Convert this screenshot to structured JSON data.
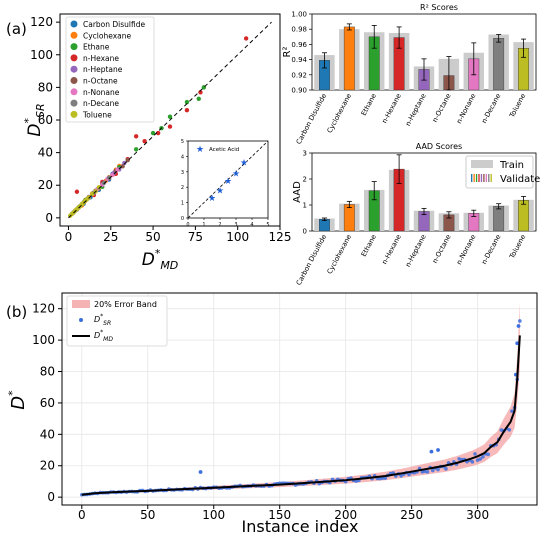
{
  "panel_labels": {
    "a": "(a)",
    "b": "(b)"
  },
  "species": [
    {
      "name": "Carbon Disulfide",
      "color": "#1f77b4"
    },
    {
      "name": "Cyclohexane",
      "color": "#ff7f0e"
    },
    {
      "name": "Ethane",
      "color": "#2ca02c"
    },
    {
      "name": "n-Hexane",
      "color": "#d62728"
    },
    {
      "name": "n-Heptane",
      "color": "#9467bd"
    },
    {
      "name": "n-Octane",
      "color": "#8c564b"
    },
    {
      "name": "n-Nonane",
      "color": "#e377c2"
    },
    {
      "name": "n-Decane",
      "color": "#7f7f7f"
    },
    {
      "name": "Toluene",
      "color": "#bcbd22"
    }
  ],
  "chart_data": [
    {
      "id": "parity",
      "type": "scatter",
      "xlabel_main": "D",
      "xlabel_sup": "*",
      "xlabel_sub": "MD",
      "ylabel_main": "D",
      "ylabel_sup": "*",
      "ylabel_sub": "SR",
      "xlim": [
        -5,
        125
      ],
      "ylim": [
        -5,
        125
      ],
      "xticks": [
        0,
        25,
        50,
        75,
        100,
        125
      ],
      "yticks": [
        0,
        20,
        40,
        60,
        80,
        100,
        120
      ],
      "grid": false,
      "legend_placement": "top-left",
      "points": [
        {
          "s": "Carbon Disulfide",
          "x": [
            3,
            5,
            7,
            9,
            11,
            13,
            15,
            18,
            21,
            24,
            26
          ],
          "y": [
            3.2,
            5.1,
            7.4,
            8.6,
            11.5,
            12.6,
            15.4,
            17.2,
            21.8,
            23.5,
            26.9
          ]
        },
        {
          "s": "Cyclohexane",
          "x": [
            2,
            4,
            6,
            8,
            10,
            12,
            14,
            16,
            18,
            20,
            22,
            24,
            26,
            28,
            30
          ],
          "y": [
            2.3,
            4.5,
            6.2,
            7.6,
            10.8,
            12.4,
            14.9,
            16.5,
            18.2,
            21.1,
            22.6,
            24.9,
            26.3,
            29.5,
            31.8
          ]
        },
        {
          "s": "Ethane",
          "x": [
            10,
            20,
            30,
            40,
            50,
            55,
            60,
            70,
            77,
            80
          ],
          "y": [
            11,
            19,
            31,
            42,
            52,
            55,
            62,
            71,
            73,
            80
          ]
        },
        {
          "s": "n-Hexane",
          "x": [
            5,
            10,
            15,
            20,
            28,
            35,
            40,
            45,
            53,
            60,
            70,
            78,
            105
          ],
          "y": [
            16,
            10.5,
            14,
            22,
            27,
            36,
            50,
            47,
            52,
            56,
            66,
            77,
            110
          ]
        },
        {
          "s": "n-Heptane",
          "x": [
            3,
            6,
            9,
            12,
            15,
            18,
            21,
            24,
            27,
            30,
            33
          ],
          "y": [
            3.4,
            6.5,
            9.2,
            12.8,
            15.3,
            18.4,
            21.6,
            24.3,
            27.8,
            29.7,
            33.6
          ]
        },
        {
          "s": "n-Octane",
          "x": [
            4,
            8,
            12,
            16,
            20,
            24,
            28,
            32,
            35
          ],
          "y": [
            4.4,
            8.3,
            12.5,
            16.6,
            20.8,
            24.2,
            28.9,
            31.6,
            35.4
          ]
        },
        {
          "s": "n-Nonane",
          "x": [
            2,
            5,
            8,
            11,
            14,
            17,
            20,
            23,
            26,
            29
          ],
          "y": [
            2.4,
            5.3,
            8.4,
            11.6,
            14.5,
            17.5,
            20.3,
            23.9,
            26.4,
            29.6
          ]
        },
        {
          "s": "n-Decane",
          "x": [
            3,
            6,
            9,
            12,
            15,
            18,
            21,
            24
          ],
          "y": [
            3.3,
            6.4,
            9.6,
            12.3,
            15.5,
            18.6,
            21.4,
            24.7
          ]
        },
        {
          "s": "Toluene",
          "x": [
            1,
            2,
            3,
            4,
            5,
            6,
            7,
            8,
            9,
            10,
            11,
            12,
            14,
            16,
            18
          ],
          "y": [
            1.3,
            2.4,
            3.2,
            4.5,
            5.3,
            6.4,
            7.2,
            8.5,
            9.3,
            10.6,
            11.4,
            12.5,
            14.6,
            16.2,
            18.7
          ]
        }
      ]
    },
    {
      "id": "inset",
      "type": "scatter",
      "legend": "Acetic Acid",
      "xlim": [
        0,
        5
      ],
      "ylim": [
        0,
        5
      ],
      "xticks": [
        0,
        1,
        2,
        3,
        4,
        5
      ],
      "yticks": [
        0,
        1,
        2,
        3,
        4,
        5
      ],
      "x": [
        1.5,
        2.0,
        2.5,
        3.0,
        3.5
      ],
      "y": [
        1.3,
        1.8,
        2.4,
        2.9,
        3.6
      ]
    },
    {
      "id": "r2",
      "type": "bar",
      "title": "R² Scores",
      "ylabel": "R²",
      "ylim": [
        0.9,
        1.0
      ],
      "yticks": [
        "0.90",
        "0.92",
        "0.94",
        "0.96",
        "0.98",
        "1.00"
      ],
      "categories": [
        "Carbon Disulfide",
        "Cyclohexane",
        "Ethane",
        "n-Hexane",
        "n-Heptane",
        "n-Octane",
        "n-Nonane",
        "n-Decane",
        "Toluene"
      ],
      "series": [
        {
          "name": "Train",
          "values": [
            0.946,
            0.98,
            0.976,
            0.975,
            0.931,
            0.941,
            0.949,
            0.973,
            0.963
          ]
        },
        {
          "name": "Validate",
          "values": [
            0.939,
            0.983,
            0.97,
            0.969,
            0.927,
            0.919,
            0.941,
            0.968,
            0.955
          ],
          "errors": [
            0.01,
            0.004,
            0.015,
            0.014,
            0.014,
            0.025,
            0.021,
            0.005,
            0.012
          ]
        }
      ]
    },
    {
      "id": "aad",
      "type": "bar",
      "title": "AAD Scores",
      "ylabel": "AAD",
      "ylim": [
        0,
        3
      ],
      "yticks": [
        "0",
        "1",
        "2",
        "3"
      ],
      "legend_placement": "top-right",
      "categories": [
        "Carbon Disulfide",
        "Cyclohexane",
        "Ethane",
        "n-Hexane",
        "n-Heptane",
        "n-Octane",
        "n-Nonane",
        "n-Decane",
        "Toluene"
      ],
      "series": [
        {
          "name": "Train",
          "values": [
            0.48,
            1.05,
            1.58,
            2.35,
            0.78,
            0.68,
            0.7,
            0.98,
            1.2
          ]
        },
        {
          "name": "Validate",
          "values": [
            0.45,
            1.02,
            1.55,
            2.38,
            0.75,
            0.62,
            0.68,
            0.95,
            1.18
          ],
          "errors": [
            0.05,
            0.12,
            0.35,
            0.55,
            0.12,
            0.12,
            0.12,
            0.1,
            0.15
          ]
        }
      ]
    },
    {
      "id": "instance",
      "type": "line",
      "xlabel": "Instance index",
      "ylabel_main": "D",
      "ylabel_sup": "*",
      "xlim": [
        -15,
        345
      ],
      "ylim": [
        -5,
        130
      ],
      "xticks": [
        0,
        50,
        100,
        150,
        200,
        250,
        300
      ],
      "yticks": [
        0,
        20,
        40,
        60,
        80,
        100,
        120
      ],
      "grid": true,
      "legend_placement": "top-left",
      "legend": {
        "band": "20% Error Band",
        "sr_main": "D",
        "sr_sup": "*",
        "sr_sub": "SR",
        "md_main": "D",
        "md_sup": "*",
        "md_sub": "MD"
      },
      "md_curve": {
        "x": [
          0,
          10,
          25,
          50,
          75,
          100,
          125,
          150,
          175,
          200,
          215,
          230,
          245,
          255,
          265,
          275,
          285,
          295,
          300,
          305,
          310,
          315,
          320,
          325,
          328,
          330,
          332
        ],
        "y": [
          1.5,
          2.5,
          3.2,
          4.0,
          5.0,
          6.0,
          7.0,
          8.0,
          9.3,
          10.8,
          12.0,
          13.5,
          15.5,
          17.0,
          18.5,
          20.0,
          22.0,
          24.5,
          26.0,
          28.0,
          32.0,
          35.0,
          42.0,
          48.0,
          55.0,
          75.0,
          103.0
        ]
      },
      "sr_outliers": {
        "x": [
          90,
          265,
          270,
          331,
          330,
          329
        ],
        "y": [
          16,
          29,
          30,
          109,
          98,
          78
        ]
      }
    }
  ]
}
